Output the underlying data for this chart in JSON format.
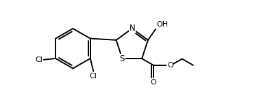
{
  "bg_color": "#ffffff",
  "line_color": "#000000",
  "lw": 1.4,
  "fs": 8.0,
  "figsize": [
    3.78,
    1.44
  ],
  "dpi": 100,
  "xlim": [
    0.0,
    10.0
  ],
  "ylim": [
    0.0,
    3.8
  ]
}
